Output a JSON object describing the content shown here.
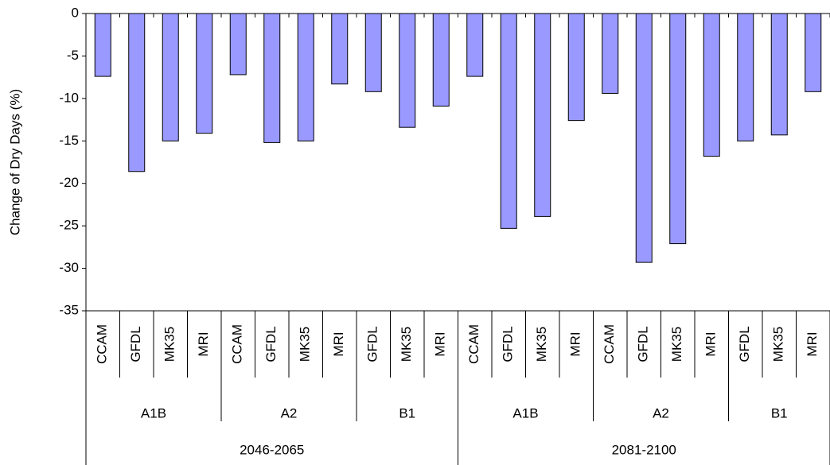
{
  "chart_data": {
    "type": "bar",
    "y_label": "Change of Dry Days  (%)",
    "color": "#9999ff",
    "ylim": [
      -35,
      0
    ],
    "yticks": [
      0,
      -5,
      -10,
      -15,
      -20,
      -25,
      -30,
      -35
    ],
    "periods": [
      {
        "name": "2046-2065",
        "groups": [
          {
            "name": "A1B",
            "categories": [
              "CCAM",
              "GFDL",
              "MK35",
              "MRI"
            ],
            "values": [
              -7.4,
              -18.6,
              -15.0,
              -14.1
            ]
          },
          {
            "name": "A2",
            "categories": [
              "CCAM",
              "GFDL",
              "MK35",
              "MRI"
            ],
            "values": [
              -7.2,
              -15.2,
              -15.0,
              -8.3
            ]
          },
          {
            "name": "B1",
            "categories": [
              "GFDL",
              "MK35",
              "MRI"
            ],
            "values": [
              -9.2,
              -13.4,
              -10.9
            ]
          }
        ]
      },
      {
        "name": "2081-2100",
        "groups": [
          {
            "name": "A1B",
            "categories": [
              "CCAM",
              "GFDL",
              "MK35",
              "MRI"
            ],
            "values": [
              -7.4,
              -25.3,
              -23.9,
              -12.6
            ]
          },
          {
            "name": "A2",
            "categories": [
              "CCAM",
              "GFDL",
              "MK35",
              "MRI"
            ],
            "values": [
              -9.4,
              -29.3,
              -27.1,
              -16.8
            ]
          },
          {
            "name": "B1",
            "categories": [
              "GFDL",
              "MK35",
              "MRI"
            ],
            "values": [
              -15.0,
              -14.3,
              -9.2
            ]
          }
        ]
      }
    ]
  }
}
